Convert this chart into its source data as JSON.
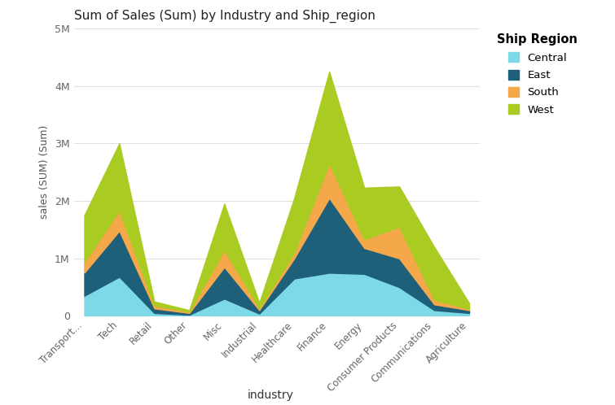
{
  "title": "Sum of Sales (Sum) by Industry and Ship_region",
  "ylabel": "sales (SUM) (Sum)",
  "xlabel": "industry",
  "categories": [
    "Transport...",
    "Tech",
    "Retail",
    "Other",
    "Misc",
    "Industrial",
    "Healthcare",
    "Finance",
    "Energy",
    "Consumer Products",
    "Communications",
    "Agriculture"
  ],
  "regions": [
    "Central",
    "East",
    "South",
    "West"
  ],
  "colors": [
    "#7DD8E8",
    "#1E5F7A",
    "#F5A84A",
    "#AACC22"
  ],
  "data": {
    "Central": [
      350000,
      680000,
      50000,
      20000,
      300000,
      40000,
      650000,
      750000,
      730000,
      500000,
      100000,
      50000
    ],
    "East": [
      400000,
      800000,
      80000,
      30000,
      550000,
      60000,
      350000,
      1300000,
      450000,
      500000,
      100000,
      50000
    ],
    "South": [
      180000,
      350000,
      50000,
      20000,
      300000,
      30000,
      100000,
      600000,
      150000,
      550000,
      80000,
      20000
    ],
    "West": [
      820000,
      1170000,
      70000,
      30000,
      800000,
      100000,
      950000,
      1600000,
      900000,
      700000,
      920000,
      100000
    ]
  },
  "ylim": [
    0,
    5000000
  ],
  "yticks": [
    0,
    1000000,
    2000000,
    3000000,
    4000000,
    5000000
  ],
  "ytick_labels": [
    "0",
    "1M",
    "2M",
    "3M",
    "4M",
    "5M"
  ],
  "bg_color": "#FFFFFF",
  "grid_color": "#E0E0E0",
  "legend_title": "Ship Region"
}
